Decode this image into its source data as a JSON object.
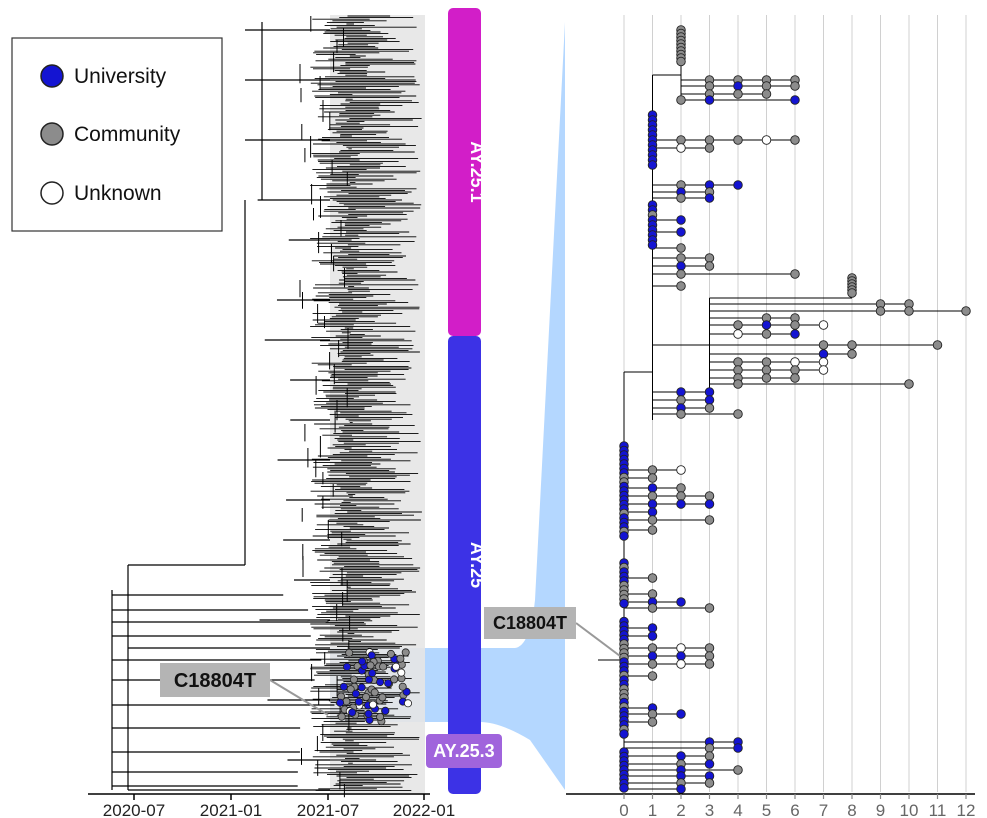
{
  "legend": {
    "items": [
      {
        "label": "University",
        "color": "#1414d2"
      },
      {
        "label": "Community",
        "color": "#8c8c8c"
      },
      {
        "label": "Unknown",
        "color": "#ffffff"
      }
    ]
  },
  "left_panel": {
    "x_ticks": [
      "2020-07",
      "2021-01",
      "2021-07",
      "2022-01"
    ]
  },
  "clades": [
    {
      "label": "AY.25.1",
      "color": "#d21ec8"
    },
    {
      "label": "AY.25",
      "color": "#3c32e6"
    },
    {
      "label": "AY.25.3",
      "color": "#a064dc"
    }
  ],
  "callouts": {
    "left": "C18804T",
    "right": "C18804T"
  },
  "right_panel": {
    "x_ticks": [
      "0",
      "1",
      "2",
      "3",
      "4",
      "5",
      "6",
      "7",
      "8",
      "9",
      "10",
      "11",
      "12"
    ]
  },
  "colors": {
    "highlight": "#b4d7ff",
    "grey_band": "#e6e6e6",
    "tree": "#000000",
    "callout_box": "#b4b4b4"
  }
}
